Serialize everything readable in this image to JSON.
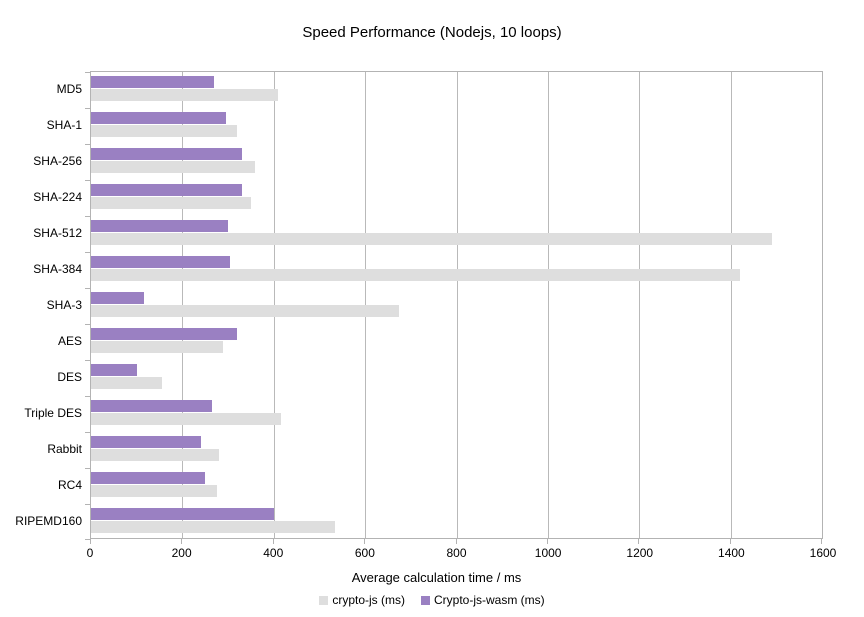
{
  "title": "Speed Performance (Nodejs, 10 loops)",
  "chart_data": {
    "type": "bar",
    "orientation": "horizontal",
    "title": "Speed Performance (Nodejs, 10 loops)",
    "xlabel": "Average calculation time / ms",
    "ylabel": "",
    "xlim": [
      0,
      1600
    ],
    "xticks": [
      0,
      200,
      400,
      600,
      800,
      1000,
      1200,
      1400,
      1600
    ],
    "grid": true,
    "legend_position": "bottom",
    "categories": [
      "MD5",
      "SHA-1",
      "SHA-256",
      "SHA-224",
      "SHA-512",
      "SHA-384",
      "SHA-3",
      "AES",
      "DES",
      "Triple DES",
      "Rabbit",
      "RC4",
      "RIPEMD160"
    ],
    "series": [
      {
        "name": "crypto-js (ms)",
        "color": "#dedede",
        "values": [
          410,
          320,
          360,
          350,
          1490,
          1420,
          675,
          290,
          155,
          415,
          280,
          275,
          535
        ]
      },
      {
        "name": "Crypto-js-wasm (ms)",
        "color": "#9a80c2",
        "values": [
          270,
          295,
          330,
          330,
          300,
          305,
          115,
          320,
          100,
          265,
          240,
          250,
          400
        ]
      }
    ]
  },
  "colors": {
    "axis": "#b3b3b3",
    "gridline": "#b9b9b9",
    "text": "#000000",
    "background": "#ffffff"
  }
}
